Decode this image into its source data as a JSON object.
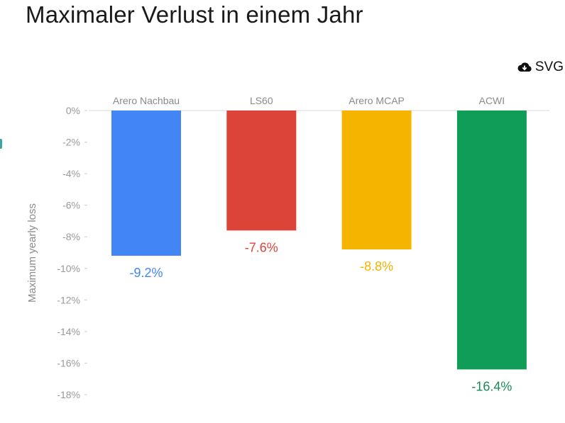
{
  "page": {
    "title": "Maximaler Verlust in einem Jahr"
  },
  "toolbar": {
    "download_label": "SVG",
    "download_icon": "cloud-download-icon"
  },
  "chart_data": {
    "type": "bar",
    "ylabel": "Maximum yearly loss",
    "xlabel": "",
    "ylim": [
      -18,
      0
    ],
    "yticks": [
      0,
      -2,
      -4,
      -6,
      -8,
      -10,
      -12,
      -14,
      -16,
      -18
    ],
    "ytick_labels": [
      "0%",
      "-2%",
      "-4%",
      "-6%",
      "-8%",
      "-10%",
      "-12%",
      "-14%",
      "-16%",
      "-18%"
    ],
    "categories": [
      "Arero Nachbau",
      "LS60",
      "Arero MCAP",
      "ACWI"
    ],
    "values": [
      -9.2,
      -7.6,
      -8.8,
      -16.4
    ],
    "value_labels": [
      "-9.2%",
      "-7.6%",
      "-8.8%",
      "-16.4%"
    ],
    "colors": [
      "#4285f4",
      "#db4437",
      "#f4b400",
      "#0f9d58"
    ],
    "label_colors": [
      "#4285f4",
      "#db4437",
      "#f4b400",
      "#1a8c50"
    ],
    "grid": false
  }
}
